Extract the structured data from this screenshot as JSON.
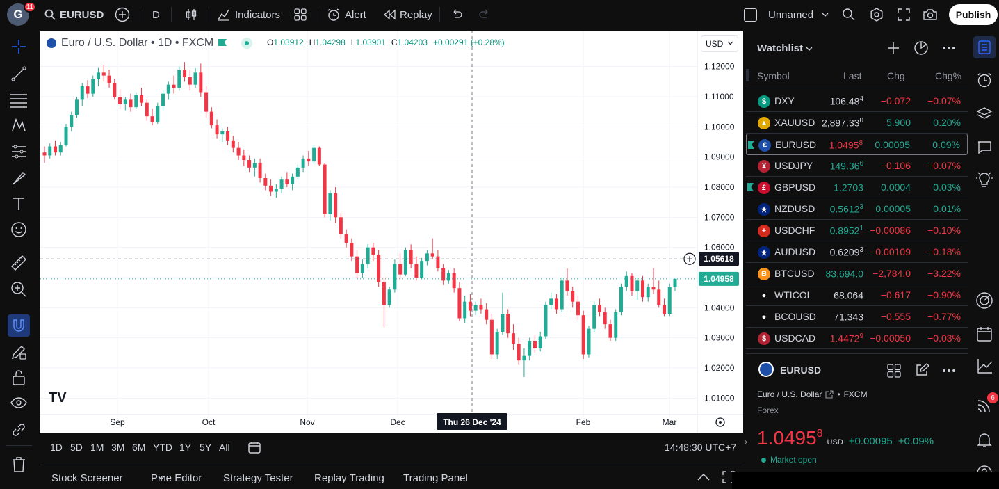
{
  "topbar": {
    "avatar_letter": "G",
    "avatar_badge": "11",
    "symbol": "EURUSD",
    "interval": "D",
    "indicators": "Indicators",
    "alert": "Alert",
    "replay": "Replay",
    "layout_name": "Unnamed",
    "publish": "Publish"
  },
  "chart": {
    "title": "Euro / U.S. Dollar • 1D • FXCM",
    "ohlc": {
      "o_label": "O",
      "o": "1.03912",
      "h_label": "H",
      "h": "1.04298",
      "l_label": "L",
      "l": "1.03901",
      "c_label": "C",
      "c": "1.04203",
      "change": "+0.00291 (+0.28%)"
    },
    "currency": "USD",
    "crosshair_price": "1.05618",
    "last_price": "1.04958",
    "crosshair_date": "Thu 26 Dec '24",
    "price_ticks": [
      "1.12000",
      "1.11000",
      "1.10000",
      "1.09000",
      "1.08000",
      "1.07000",
      "1.06000",
      "1.05000",
      "1.04000",
      "1.03000",
      "1.02000",
      "1.01000"
    ],
    "time_ticks": [
      "Sep",
      "Oct",
      "Nov",
      "Dec",
      "Feb",
      "Mar"
    ],
    "logo": "TV"
  },
  "chart_data": {
    "type": "candlestick",
    "ylim": [
      1.005,
      1.125
    ],
    "up_color": "#22ab94",
    "down_color": "#f23645",
    "candles": [
      [
        1.0915,
        1.0935,
        1.088,
        1.0905
      ],
      [
        1.0905,
        1.0945,
        1.0895,
        1.0935
      ],
      [
        1.0935,
        1.0955,
        1.0905,
        1.0915
      ],
      [
        1.0915,
        1.095,
        1.0905,
        1.094
      ],
      [
        1.094,
        1.101,
        1.0935,
        1.1
      ],
      [
        1.1,
        1.105,
        1.0985,
        1.104
      ],
      [
        1.104,
        1.11,
        1.103,
        1.109
      ],
      [
        1.109,
        1.1145,
        1.107,
        1.1135
      ],
      [
        1.1135,
        1.1155,
        1.1095,
        1.111
      ],
      [
        1.111,
        1.117,
        1.11,
        1.116
      ],
      [
        1.116,
        1.1195,
        1.1135,
        1.118
      ],
      [
        1.118,
        1.1205,
        1.115,
        1.117
      ],
      [
        1.117,
        1.119,
        1.113,
        1.1145
      ],
      [
        1.1145,
        1.116,
        1.109,
        1.11
      ],
      [
        1.11,
        1.1125,
        1.106,
        1.1075
      ],
      [
        1.1075,
        1.11,
        1.1055,
        1.109
      ],
      [
        1.109,
        1.111,
        1.105,
        1.1065
      ],
      [
        1.1065,
        1.1115,
        1.106,
        1.1105
      ],
      [
        1.1105,
        1.113,
        1.107,
        1.108
      ],
      [
        1.108,
        1.109,
        1.102,
        1.1035
      ],
      [
        1.1035,
        1.106,
        1.1005,
        1.1015
      ],
      [
        1.1015,
        1.108,
        1.101,
        1.107
      ],
      [
        1.107,
        1.112,
        1.1055,
        1.111
      ],
      [
        1.111,
        1.115,
        1.109,
        1.114
      ],
      [
        1.114,
        1.117,
        1.111,
        1.113
      ],
      [
        1.113,
        1.12,
        1.112,
        1.119
      ],
      [
        1.119,
        1.1215,
        1.115,
        1.1165
      ],
      [
        1.1165,
        1.119,
        1.112,
        1.114
      ],
      [
        1.114,
        1.1195,
        1.113,
        1.118
      ],
      [
        1.118,
        1.121,
        1.11,
        1.1115
      ],
      [
        1.1115,
        1.1135,
        1.103,
        1.105
      ],
      [
        1.105,
        1.1065,
        1.0995,
        1.1005
      ],
      [
        1.1005,
        1.1025,
        1.096,
        1.0975
      ],
      [
        1.0975,
        1.0995,
        1.095,
        1.0985
      ],
      [
        1.0985,
        1.1,
        1.094,
        1.0955
      ],
      [
        1.0955,
        1.097,
        1.0915,
        1.093
      ],
      [
        1.093,
        1.095,
        1.089,
        1.0905
      ],
      [
        1.0905,
        1.0925,
        1.087,
        1.089
      ],
      [
        1.089,
        1.0905,
        1.085,
        1.0865
      ],
      [
        1.0865,
        1.0895,
        1.0835,
        1.088
      ],
      [
        1.088,
        1.0895,
        1.0815,
        1.083
      ],
      [
        1.083,
        1.0845,
        1.079,
        1.0805
      ],
      [
        1.0805,
        1.0825,
        1.077,
        1.0785
      ],
      [
        1.0785,
        1.081,
        1.0765,
        1.0795
      ],
      [
        1.0795,
        1.0835,
        1.078,
        1.0825
      ],
      [
        1.0825,
        1.085,
        1.08,
        1.081
      ],
      [
        1.081,
        1.0845,
        1.079,
        1.0835
      ],
      [
        1.0835,
        1.0875,
        1.0825,
        1.0865
      ],
      [
        1.0865,
        1.0905,
        1.085,
        1.0895
      ],
      [
        1.0895,
        1.092,
        1.087,
        1.0885
      ],
      [
        1.0885,
        1.094,
        1.0875,
        1.093
      ],
      [
        1.093,
        1.0935,
        1.087,
        1.0875
      ],
      [
        1.0875,
        1.088,
        1.07,
        1.071
      ],
      [
        1.071,
        1.079,
        1.069,
        1.078
      ],
      [
        1.078,
        1.08,
        1.068,
        1.07
      ],
      [
        1.07,
        1.0715,
        1.063,
        1.0645
      ],
      [
        1.0645,
        1.066,
        1.06,
        1.0615
      ],
      [
        1.0615,
        1.063,
        1.0555,
        1.057
      ],
      [
        1.057,
        1.059,
        1.05,
        1.0515
      ],
      [
        1.0515,
        1.056,
        1.05,
        1.0545
      ],
      [
        1.0545,
        1.061,
        1.053,
        1.06
      ],
      [
        1.06,
        1.0615,
        1.0555,
        1.0575
      ],
      [
        1.0575,
        1.059,
        1.047,
        1.0485
      ],
      [
        1.0485,
        1.05,
        1.0335,
        1.041
      ],
      [
        1.041,
        1.047,
        1.04,
        1.046
      ],
      [
        1.046,
        1.056,
        1.045,
        1.0545
      ],
      [
        1.0545,
        1.058,
        1.0495,
        1.051
      ],
      [
        1.051,
        1.06,
        1.0505,
        1.059
      ],
      [
        1.059,
        1.061,
        1.053,
        1.0545
      ],
      [
        1.0545,
        1.057,
        1.049,
        1.05
      ],
      [
        1.05,
        1.0565,
        1.0495,
        1.0555
      ],
      [
        1.0555,
        1.059,
        1.054,
        1.058
      ],
      [
        1.058,
        1.063,
        1.056,
        1.057
      ],
      [
        1.057,
        1.059,
        1.052,
        1.053
      ],
      [
        1.053,
        1.0545,
        1.0475,
        1.049
      ],
      [
        1.049,
        1.0525,
        1.048,
        1.0515
      ],
      [
        1.0515,
        1.053,
        1.045,
        1.0465
      ],
      [
        1.0465,
        1.0485,
        1.0355,
        1.0365
      ],
      [
        1.0365,
        1.044,
        1.035,
        1.042
      ],
      [
        1.042,
        1.0445,
        1.037,
        1.039
      ],
      [
        1.039,
        1.042,
        1.0375,
        1.041
      ],
      [
        1.041,
        1.043,
        1.038,
        1.0395
      ],
      [
        1.0395,
        1.0415,
        1.0345,
        1.036
      ],
      [
        1.036,
        1.038,
        1.023,
        1.0245
      ],
      [
        1.0245,
        1.033,
        1.023,
        1.032
      ],
      [
        1.032,
        1.045,
        1.031,
        1.038
      ],
      [
        1.038,
        1.0395,
        1.03,
        1.0315
      ],
      [
        1.0315,
        1.0345,
        1.026,
        1.028
      ],
      [
        1.028,
        1.03,
        1.021,
        1.0225
      ],
      [
        1.0225,
        1.0265,
        1.017,
        1.024
      ],
      [
        1.024,
        1.03,
        1.0225,
        1.029
      ],
      [
        1.029,
        1.031,
        1.025,
        1.0265
      ],
      [
        1.0265,
        1.032,
        1.0255,
        1.0305
      ],
      [
        1.0305,
        1.042,
        1.0295,
        1.041
      ],
      [
        1.041,
        1.045,
        1.0395,
        1.043
      ],
      [
        1.043,
        1.0445,
        1.038,
        1.0395
      ],
      [
        1.0395,
        1.05,
        1.0385,
        1.049
      ],
      [
        1.049,
        1.053,
        1.044,
        1.0455
      ],
      [
        1.0455,
        1.047,
        1.04,
        1.042
      ],
      [
        1.042,
        1.044,
        1.036,
        1.0375
      ],
      [
        1.0375,
        1.039,
        1.023,
        1.0245
      ],
      [
        1.0245,
        1.034,
        1.0235,
        1.033
      ],
      [
        1.033,
        1.042,
        1.032,
        1.041
      ],
      [
        1.041,
        1.043,
        1.037,
        1.0385
      ],
      [
        1.0385,
        1.04,
        1.033,
        1.0345
      ],
      [
        1.0345,
        1.036,
        1.029,
        1.03
      ],
      [
        1.03,
        1.0395,
        1.029,
        1.0385
      ],
      [
        1.0385,
        1.048,
        1.0375,
        1.047
      ],
      [
        1.047,
        1.052,
        1.0455,
        1.0505
      ],
      [
        1.0505,
        1.0515,
        1.044,
        1.0455
      ],
      [
        1.0455,
        1.05,
        1.0425,
        1.049
      ],
      [
        1.049,
        1.0505,
        1.042,
        1.0435
      ],
      [
        1.0435,
        1.048,
        1.042,
        1.047
      ],
      [
        1.047,
        1.053,
        1.0445,
        1.046
      ],
      [
        1.046,
        1.049,
        1.04,
        1.041
      ],
      [
        1.041,
        1.043,
        1.037,
        1.038
      ],
      [
        1.038,
        1.048,
        1.037,
        1.047
      ],
      [
        1.047,
        1.0495,
        1.0455,
        1.0496
      ]
    ]
  },
  "range_buttons": [
    "1D",
    "5D",
    "1M",
    "3M",
    "6M",
    "YTD",
    "1Y",
    "5Y",
    "All"
  ],
  "clock": "14:48:30 UTC+7",
  "bottom_tabs": [
    "Stock Screener",
    "Pine Editor",
    "Strategy Tester",
    "Replay Trading",
    "Trading Panel"
  ],
  "watchlist": {
    "title": "Watchlist",
    "headers": {
      "symbol": "Symbol",
      "last": "Last",
      "chg": "Chg",
      "pct": "Chg%"
    },
    "rows": [
      {
        "sym": "DXY",
        "last_main": "106.48",
        "last_sup": "4",
        "chg": "−0.072",
        "pct": "−0.07%",
        "last_dir": "wht",
        "dir": "neg",
        "icon_color": "#089981",
        "icon_glyph": "$"
      },
      {
        "sym": "XAUUSD",
        "last_main": "2,897.33",
        "last_sup": "0",
        "chg": "5.900",
        "pct": "0.20%",
        "last_dir": "wht",
        "dir": "pos",
        "icon_color": "#e0a800",
        "icon_glyph": "▲"
      },
      {
        "sym": "EURUSD",
        "last_main": "1.0495",
        "last_sup": "8",
        "chg": "0.00095",
        "pct": "0.09%",
        "last_dir": "neg",
        "dir": "pos",
        "icon_color": "#1e4fa8",
        "icon_glyph": "€"
      },
      {
        "sym": "USDJPY",
        "last_main": "149.36",
        "last_sup": "6",
        "chg": "−0.106",
        "pct": "−0.07%",
        "last_dir": "pos",
        "dir": "neg",
        "icon_color": "#b22234",
        "icon_glyph": "¥"
      },
      {
        "sym": "GBPUSD",
        "last_main": "1.2703",
        "last_sup": "",
        "chg": "0.0004",
        "pct": "0.03%",
        "last_dir": "pos",
        "dir": "pos",
        "icon_color": "#c8102e",
        "icon_glyph": "£"
      },
      {
        "sym": "NZDUSD",
        "last_main": "0.5612",
        "last_sup": "3",
        "chg": "0.00005",
        "pct": "0.01%",
        "last_dir": "pos",
        "dir": "pos",
        "icon_color": "#00247d",
        "icon_glyph": "★"
      },
      {
        "sym": "USDCHF",
        "last_main": "0.8952",
        "last_sup": "1",
        "chg": "−0.00086",
        "pct": "−0.10%",
        "last_dir": "pos",
        "dir": "neg",
        "icon_color": "#d52b1e",
        "icon_glyph": "+"
      },
      {
        "sym": "AUDUSD",
        "last_main": "0.6209",
        "last_sup": "3",
        "chg": "−0.00109",
        "pct": "−0.18%",
        "last_dir": "wht",
        "dir": "neg",
        "icon_color": "#00247d",
        "icon_glyph": "★"
      },
      {
        "sym": "BTCUSD",
        "last_main": "83,694.0",
        "last_sup": "",
        "chg": "−2,784.0",
        "pct": "−3.22%",
        "last_dir": "pos",
        "dir": "neg",
        "icon_color": "#f7931a",
        "icon_glyph": "B"
      },
      {
        "sym": "WTICOL",
        "last_main": "68.064",
        "last_sup": "",
        "chg": "−0.617",
        "pct": "−0.90%",
        "last_dir": "wht",
        "dir": "neg",
        "icon_color": "#0f0f0f",
        "icon_glyph": "●"
      },
      {
        "sym": "BCOUSD",
        "last_main": "71.343",
        "last_sup": "",
        "chg": "−0.555",
        "pct": "−0.77%",
        "last_dir": "wht",
        "dir": "neg",
        "icon_color": "#0f0f0f",
        "icon_glyph": "●"
      },
      {
        "sym": "USDCAD",
        "last_main": "1.4472",
        "last_sup": "9",
        "chg": "−0.00050",
        "pct": "−0.03%",
        "last_dir": "neg",
        "dir": "neg",
        "icon_color": "#b22234",
        "icon_glyph": "$"
      }
    ]
  },
  "details": {
    "symbol": "EURUSD",
    "name": "Euro / U.S. Dollar",
    "exchange": "FXCM",
    "type": "Forex",
    "price_main": "1.0495",
    "price_sup": "8",
    "currency": "USD",
    "change": "+0.00095",
    "change_pct": "+0.09%",
    "status": "Market open"
  },
  "rightbar": {
    "alerts_badge": "6"
  }
}
